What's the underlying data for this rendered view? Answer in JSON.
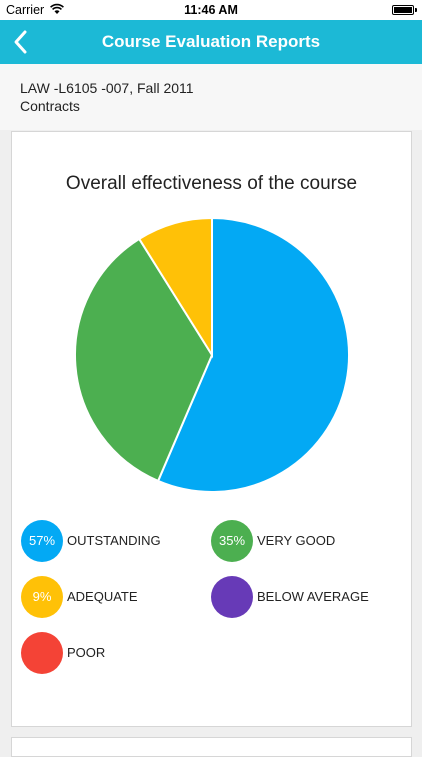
{
  "status_bar": {
    "carrier": "Carrier",
    "time": "11:46 AM",
    "wifi_icon": "wifi-icon",
    "battery_icon": "battery-icon"
  },
  "nav": {
    "back_icon": "chevron-left-icon",
    "title": "Course Evaluation Reports",
    "color": "#1cb9d6"
  },
  "course": {
    "code": "LAW -L6105 -007, Fall 2011",
    "name": "Contracts"
  },
  "chart_data": {
    "type": "pie",
    "title": "Overall effectiveness of the course",
    "slices": [
      {
        "label": "OUTSTANDING",
        "value": 57,
        "color": "#03a9f4",
        "percent_label": "57%"
      },
      {
        "label": "VERY GOOD",
        "value": 35,
        "color": "#4caf50",
        "percent_label": "35%"
      },
      {
        "label": "ADEQUATE",
        "value": 9,
        "color": "#ffc107",
        "percent_label": "9%"
      },
      {
        "label": "BELOW AVERAGE",
        "value": 0,
        "color": "#673ab7",
        "percent_label": ""
      },
      {
        "label": "POOR",
        "value": 0,
        "color": "#f44336",
        "percent_label": ""
      }
    ]
  }
}
